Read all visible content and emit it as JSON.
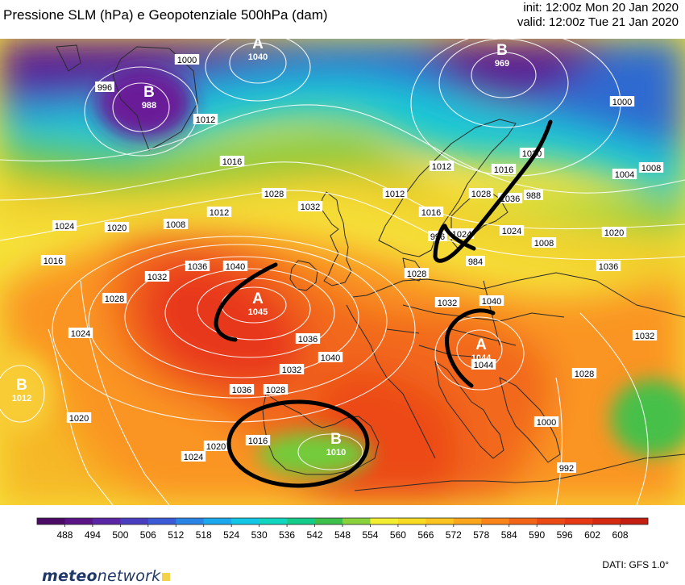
{
  "header": {
    "title": "Pressione SLM (hPa) e Geopotenziale 500hPa (dam)",
    "init": "init: 12:00z Mon 20 Jan 2020",
    "valid": "valid: 12:00z Tue 21 Jan 2020"
  },
  "pressure_centers": [
    {
      "symbol": "A",
      "value": "1040"
    },
    {
      "symbol": "B",
      "value": "969"
    },
    {
      "symbol": "B",
      "value": "988"
    },
    {
      "symbol": "A",
      "value": "1045"
    },
    {
      "symbol": "A",
      "value": "1044"
    },
    {
      "symbol": "B",
      "value": "1012"
    },
    {
      "symbol": "B",
      "value": "1010"
    }
  ],
  "isobar_labels": [
    "996",
    "1000",
    "1012",
    "1016",
    "1028",
    "1032",
    "1024",
    "1020",
    "1008",
    "1012",
    "1016",
    "1028",
    "1032",
    "1036",
    "1040",
    "1024",
    "1020",
    "1016",
    "1020",
    "1024",
    "1028",
    "1032",
    "1036",
    "1040",
    "1036",
    "1044",
    "1000",
    "1004",
    "1008",
    "1012",
    "1016",
    "1024",
    "1020",
    "1036",
    "1032",
    "1040",
    "1028",
    "1008",
    "1012",
    "1016",
    "1020",
    "1024",
    "1028",
    "988",
    "984",
    "1000",
    "992",
    "996",
    "1036",
    "1032",
    "1028"
  ],
  "colorbar": {
    "unit": "dam",
    "ticks": [
      "488",
      "494",
      "500",
      "506",
      "512",
      "518",
      "524",
      "530",
      "536",
      "542",
      "548",
      "554",
      "560",
      "566",
      "572",
      "578",
      "584",
      "590",
      "596",
      "602",
      "608"
    ],
    "colors": [
      "#4a0a66",
      "#5a1486",
      "#5a26a6",
      "#4a3ec0",
      "#3a5ad8",
      "#2a84e6",
      "#1aa8ee",
      "#12c6e6",
      "#10d6c0",
      "#14cc8a",
      "#3cc04a",
      "#8ad23c",
      "#f4ee30",
      "#fadb24",
      "#fcc41e",
      "#fca61c",
      "#fa8418",
      "#f46416",
      "#ec4a14",
      "#e63812",
      "#d62a10",
      "#c41e10"
    ]
  },
  "branding": {
    "name_part1": "meteo",
    "name_part2": "network"
  },
  "source": "DATI:  GFS  1.0°"
}
